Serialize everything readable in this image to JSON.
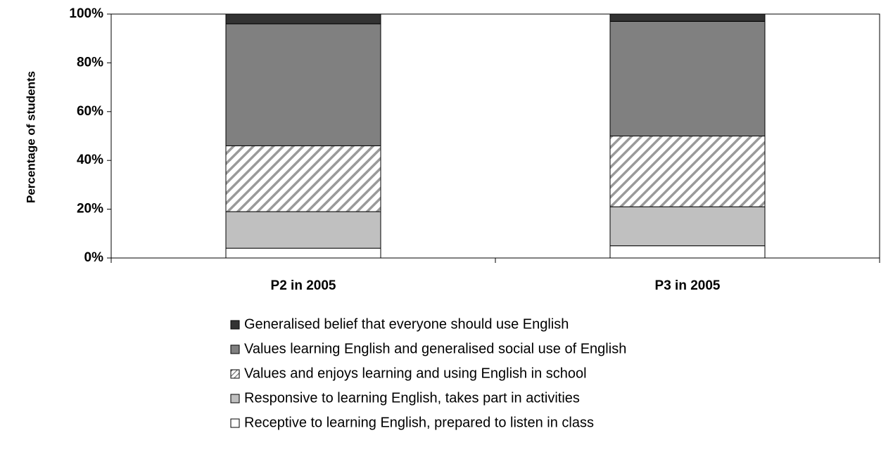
{
  "chart_data": {
    "type": "stacked_bar",
    "y_label": "Percentage of students",
    "categories": [
      "P2 in 2005",
      "P3 in 2005"
    ],
    "series": [
      {
        "name": "Receptive to learning English, prepared to listen in class",
        "color": "#ffffff",
        "values": [
          4,
          5
        ]
      },
      {
        "name": "Responsive to learning English, takes part in activities",
        "color": "#c0c0c0",
        "values": [
          15,
          16
        ]
      },
      {
        "name": "Values and enjoys learning and using English in school",
        "color": "#ffffff",
        "pattern": "hatch",
        "values": [
          27,
          29
        ]
      },
      {
        "name": "Values learning English and generalised social use of English",
        "color": "#808080",
        "values": [
          50,
          47
        ]
      },
      {
        "name": "Generalised belief that everyone should use English",
        "color": "#333333",
        "values": [
          4,
          3
        ]
      }
    ],
    "ylim": [
      0,
      100
    ],
    "yticks": [
      {
        "value": 0,
        "label": "0%"
      },
      {
        "value": 20,
        "label": "20%"
      },
      {
        "value": 40,
        "label": "40%"
      },
      {
        "value": 60,
        "label": "60%"
      },
      {
        "value": 80,
        "label": "80%"
      },
      {
        "value": 100,
        "label": "100%"
      }
    ],
    "grid": false
  }
}
